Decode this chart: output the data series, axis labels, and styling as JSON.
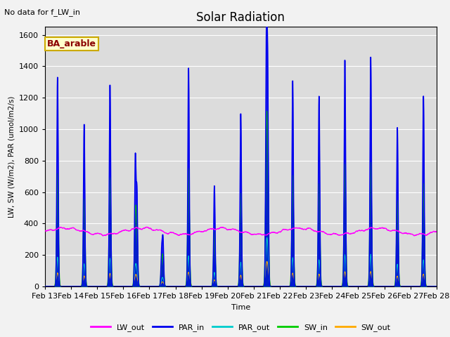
{
  "title": "Solar Radiation",
  "subtitle": "No data for f_LW_in",
  "annotation": "BA_arable",
  "xlabel": "Time",
  "ylabel": "LW, SW (W/m2), PAR (umol/m2/s)",
  "ylim": [
    0,
    1650
  ],
  "yticks": [
    0,
    200,
    400,
    600,
    800,
    1000,
    1200,
    1400,
    1600
  ],
  "xtick_labels": [
    "Feb 13",
    "Feb 14",
    "Feb 15",
    "Feb 16",
    "Feb 17",
    "Feb 18",
    "Feb 19",
    "Feb 20",
    "Feb 21",
    "Feb 22",
    "Feb 23",
    "Feb 24",
    "Feb 25",
    "Feb 26",
    "Feb 27",
    "Feb 28"
  ],
  "colors": {
    "LW_out": "#ff00ff",
    "PAR_in": "#0000ee",
    "PAR_out": "#00cccc",
    "SW_in": "#00cc00",
    "SW_out": "#ffaa00"
  },
  "background_color": "#dcdcdc",
  "fig_bg": "#f2f2f2"
}
